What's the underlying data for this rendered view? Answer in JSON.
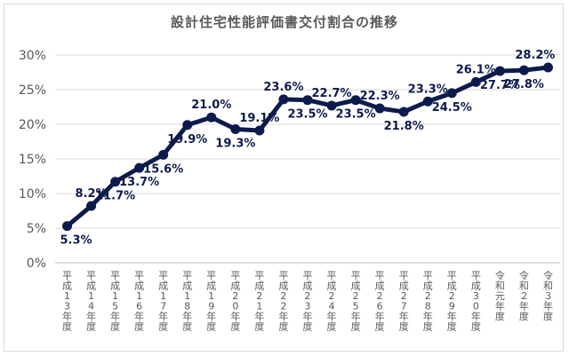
{
  "chart_data": {
    "type": "line",
    "title": "設計住宅性能評価書交付割合の推移",
    "categories": [
      "平成13年度",
      "平成14年度",
      "平成15年度",
      "平成16年度",
      "平成17年度",
      "平成18年度",
      "平成19年度",
      "平成20年度",
      "平成21年度",
      "平成22年度",
      "平成23年度",
      "平成24年度",
      "平成25年度",
      "平成26年度",
      "平成27年度",
      "平成28年度",
      "平成29年度",
      "平成30年度",
      "令和元年度",
      "令和２年度",
      "令和３年度"
    ],
    "values": [
      5.3,
      8.2,
      11.7,
      13.7,
      15.6,
      19.9,
      21.0,
      19.3,
      19.1,
      23.6,
      23.5,
      22.7,
      23.5,
      22.3,
      21.8,
      23.3,
      24.5,
      26.1,
      27.7,
      27.8,
      28.2
    ],
    "data_labels": [
      "5.3%",
      "8.2%",
      "11.7%",
      "13.7%",
      "15.6%",
      "19.9%",
      "21.0%",
      "19.3%",
      "19.1%",
      "23.6%",
      "23.5%",
      "22.7%",
      "23.5%",
      "22.3%",
      "21.8%",
      "23.3%",
      "24.5%",
      "26.1%",
      "27.7%",
      "27.8%",
      "28.2%"
    ],
    "y_ticks": [
      "0%",
      "5%",
      "10%",
      "15%",
      "20%",
      "25%",
      "30%"
    ],
    "ylim": [
      0,
      30
    ],
    "grid": true,
    "line_color": "#0d1b4c"
  }
}
